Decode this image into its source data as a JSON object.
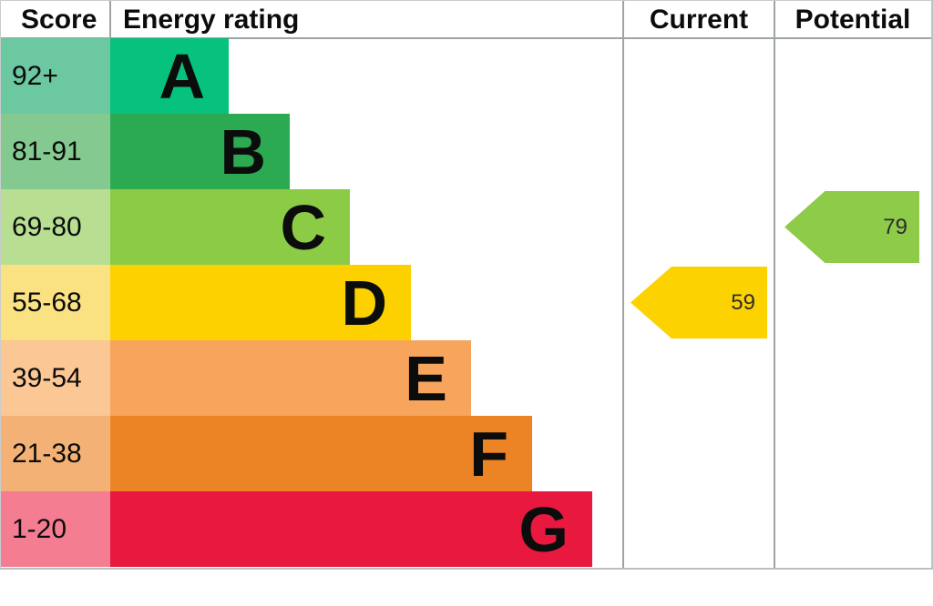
{
  "header": {
    "score": "Score",
    "energy_rating": "Energy rating",
    "current": "Current",
    "potential": "Potential"
  },
  "bands": [
    {
      "range": "92+",
      "letter": "A",
      "bar_color": "#07c27d",
      "cell_color": "#6cc8a1"
    },
    {
      "range": "81-91",
      "letter": "B",
      "bar_color": "#2caa52",
      "cell_color": "#84ca90"
    },
    {
      "range": "69-80",
      "letter": "C",
      "bar_color": "#8ccb46",
      "cell_color": "#b8de91"
    },
    {
      "range": "55-68",
      "letter": "D",
      "bar_color": "#fdd000",
      "cell_color": "#fae181"
    },
    {
      "range": "39-54",
      "letter": "E",
      "bar_color": "#f7a45d",
      "cell_color": "#fbc795"
    },
    {
      "range": "21-38",
      "letter": "F",
      "bar_color": "#ec8426",
      "cell_color": "#f4b175"
    },
    {
      "range": "1-20",
      "letter": "G",
      "bar_color": "#e9183f",
      "cell_color": "#f47d92"
    }
  ],
  "current": {
    "value": "59",
    "band_letter": "D",
    "band_index": 3,
    "arrow_color": "#fcd201"
  },
  "potential": {
    "value": "79",
    "band_letter": "C",
    "band_index": 2,
    "arrow_color": "#8ecb49"
  },
  "chart_data": {
    "type": "bar",
    "title": "Energy rating (EPC band chart)",
    "categories": [
      "A",
      "B",
      "C",
      "D",
      "E",
      "F",
      "G"
    ],
    "score_ranges": [
      "92+",
      "81-91",
      "69-80",
      "55-68",
      "39-54",
      "21-38",
      "1-20"
    ],
    "band_colors": [
      "#07c27d",
      "#2caa52",
      "#8ccb46",
      "#fdd000",
      "#f7a45d",
      "#ec8426",
      "#e9183f"
    ],
    "columns": [
      "Score",
      "Energy rating",
      "Current",
      "Potential"
    ],
    "markers": [
      {
        "name": "Current",
        "value": 59,
        "band": "D",
        "color": "#fcd201"
      },
      {
        "name": "Potential",
        "value": 79,
        "band": "C",
        "color": "#8ecb49"
      }
    ],
    "layout": {
      "orientation": "horizontal",
      "bars_increase_downward": true,
      "grid": false
    }
  }
}
